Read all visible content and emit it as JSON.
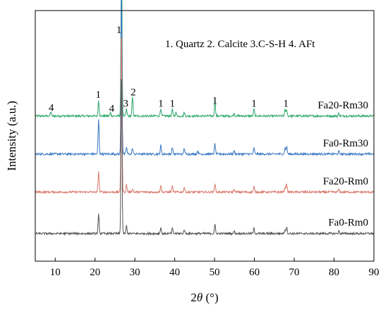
{
  "chart_data": {
    "type": "line",
    "xlabel_prefix": "2",
    "xlabel_theta": "θ",
    "xlabel_suffix": " (°)",
    "ylabel": "Intensity (a.u.)",
    "xlim": [
      5,
      90
    ],
    "xticks": [
      10,
      20,
      30,
      40,
      50,
      60,
      70,
      80,
      90
    ],
    "legend_text": "1. Quartz  2. Calcite   3.C-S-H  4. AFt",
    "grid": false,
    "series": [
      {
        "name": "Fa20-Rm30",
        "color": "#2ea86a",
        "baseline": 0.84,
        "peaks": [
          [
            8.9,
            0.025
          ],
          [
            20.9,
            0.09
          ],
          [
            23.9,
            0.02
          ],
          [
            26.65,
            0.97
          ],
          [
            27.9,
            0.04
          ],
          [
            29.4,
            0.11
          ],
          [
            36.5,
            0.045
          ],
          [
            39.4,
            0.04
          ],
          [
            40.3,
            0.02
          ],
          [
            42.4,
            0.02
          ],
          [
            50.1,
            0.09
          ],
          [
            54.9,
            0.015
          ],
          [
            59.9,
            0.04
          ],
          [
            67.7,
            0.035
          ],
          [
            68.1,
            0.04
          ],
          [
            81.2,
            0.015
          ]
        ]
      },
      {
        "name": "Fa0-Rm30",
        "color": "#3a78c2",
        "baseline": 0.62,
        "peaks": [
          [
            20.9,
            0.2
          ],
          [
            26.65,
            0.96
          ],
          [
            27.9,
            0.04
          ],
          [
            29.4,
            0.035
          ],
          [
            36.5,
            0.05
          ],
          [
            39.4,
            0.04
          ],
          [
            42.4,
            0.035
          ],
          [
            45.8,
            0.02
          ],
          [
            50.1,
            0.06
          ],
          [
            54.9,
            0.02
          ],
          [
            59.9,
            0.035
          ],
          [
            67.7,
            0.035
          ],
          [
            68.1,
            0.045
          ],
          [
            81.2,
            0.015
          ]
        ]
      },
      {
        "name": "Fa20-Rm0",
        "color": "#d97a6c",
        "baseline": 0.4,
        "peaks": [
          [
            20.9,
            0.12
          ],
          [
            26.65,
            0.96
          ],
          [
            27.9,
            0.045
          ],
          [
            29.4,
            0.02
          ],
          [
            36.5,
            0.04
          ],
          [
            39.4,
            0.035
          ],
          [
            42.4,
            0.03
          ],
          [
            50.1,
            0.05
          ],
          [
            54.9,
            0.015
          ],
          [
            59.9,
            0.03
          ],
          [
            67.7,
            0.03
          ],
          [
            68.1,
            0.05
          ],
          [
            81.2,
            0.015
          ]
        ]
      },
      {
        "name": "Fa0-Rm0",
        "color": "#555555",
        "baseline": 0.16,
        "peaks": [
          [
            20.9,
            0.11
          ],
          [
            26.65,
            0.96
          ],
          [
            27.9,
            0.045
          ],
          [
            36.5,
            0.035
          ],
          [
            39.4,
            0.03
          ],
          [
            42.4,
            0.025
          ],
          [
            50.1,
            0.05
          ],
          [
            54.9,
            0.015
          ],
          [
            59.9,
            0.03
          ],
          [
            67.7,
            0.025
          ],
          [
            68.1,
            0.04
          ],
          [
            81.2,
            0.015
          ]
        ]
      }
    ],
    "peak_labels": [
      {
        "text": "4",
        "x": 9.0,
        "y": 0.87
      },
      {
        "text": "1",
        "x": 20.8,
        "y": 0.945
      },
      {
        "text": "4",
        "x": 24.2,
        "y": 0.865
      },
      {
        "text": "1",
        "x": 26.0,
        "y": 1.32
      },
      {
        "text": "3",
        "x": 27.7,
        "y": 0.895
      },
      {
        "text": "2",
        "x": 29.6,
        "y": 0.96
      },
      {
        "text": "1",
        "x": 36.5,
        "y": 0.895
      },
      {
        "text": "1",
        "x": 39.4,
        "y": 0.895
      },
      {
        "text": "1",
        "x": 50.1,
        "y": 0.91
      },
      {
        "text": "1",
        "x": 59.9,
        "y": 0.895
      },
      {
        "text": "1",
        "x": 67.9,
        "y": 0.895
      }
    ]
  }
}
